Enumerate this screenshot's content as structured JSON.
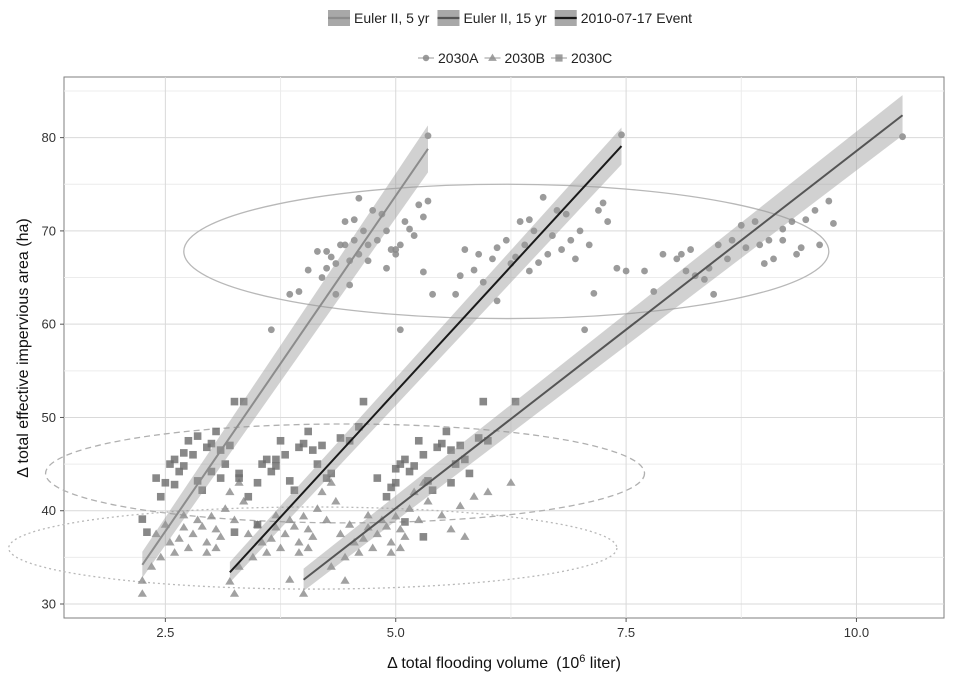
{
  "chart_data": {
    "type": "scatter",
    "xlabel_main": "Δ total flooding volume",
    "xlabel_unit_pre": "(10",
    "xlabel_unit_sup": "6",
    "xlabel_unit_post": " liter)",
    "ylabel": "Δ total effective impervious area  (ha)",
    "xlim": [
      1.4,
      10.95
    ],
    "ylim": [
      28.5,
      86.5
    ],
    "x_ticks": [
      2.5,
      5.0,
      7.5,
      10.0
    ],
    "x_tick_labels": [
      "2.5",
      "5.0",
      "7.5",
      "10.0"
    ],
    "y_ticks": [
      30,
      40,
      50,
      60,
      70,
      80
    ],
    "y_tick_labels": [
      "30",
      "40",
      "50",
      "60",
      "70",
      "80"
    ],
    "grid": true,
    "legend_position": "top",
    "line_legend": [
      {
        "name": "Euler II, 5 yr",
        "color": "#8c8c8c"
      },
      {
        "name": "Euler II, 15 yr",
        "color": "#555555"
      },
      {
        "name": "2010-07-17 Event",
        "color": "#1a1a1a"
      }
    ],
    "point_legend": [
      {
        "name": "2030A",
        "shape": "circle"
      },
      {
        "name": "2030B",
        "shape": "triangle"
      },
      {
        "name": "2030C",
        "shape": "square"
      }
    ],
    "fit_lines": [
      {
        "name": "Euler II, 5 yr",
        "color": "#8c8c8c",
        "x": [
          2.25,
          5.35
        ],
        "y": [
          34.2,
          78.8
        ],
        "band_halfwidth": 1.4
      },
      {
        "name": "2010-07-17 Event",
        "color": "#1a1a1a",
        "x": [
          3.2,
          7.45
        ],
        "y": [
          33.4,
          79.1
        ],
        "band_halfwidth": 1.1
      },
      {
        "name": "Euler II, 15 yr",
        "color": "#555555",
        "x": [
          4.0,
          10.5
        ],
        "y": [
          32.6,
          82.4
        ],
        "band_halfwidth": 1.2
      }
    ],
    "ellipses": [
      {
        "cx": 6.2,
        "cy": 67.8,
        "rx": 3.5,
        "ry": 7.2,
        "style": "solid",
        "color": "#b8b8b8"
      },
      {
        "cx": 4.45,
        "cy": 44.0,
        "rx": 3.25,
        "ry": 5.3,
        "style": "dashed",
        "color": "#b0b0b0"
      },
      {
        "cx": 4.1,
        "cy": 36.0,
        "rx": 3.3,
        "ry": 4.4,
        "style": "dotted",
        "color": "#b8b8b8"
      }
    ],
    "series": [
      {
        "name": "2030A",
        "shape": "circle",
        "color": "#8a8a8a",
        "points": [
          [
            5.35,
            80.2
          ],
          [
            7.45,
            80.3
          ],
          [
            10.5,
            80.1
          ],
          [
            3.65,
            59.4
          ],
          [
            5.05,
            59.4
          ],
          [
            7.05,
            59.4
          ],
          [
            3.85,
            63.2
          ],
          [
            3.95,
            63.5
          ],
          [
            4.35,
            63.2
          ],
          [
            4.5,
            64.2
          ],
          [
            4.2,
            65.0
          ],
          [
            4.05,
            65.8
          ],
          [
            4.15,
            67.8
          ],
          [
            4.25,
            67.8
          ],
          [
            4.4,
            68.5
          ],
          [
            4.45,
            71.0
          ],
          [
            4.55,
            71.2
          ],
          [
            4.6,
            73.5
          ],
          [
            4.75,
            72.2
          ],
          [
            4.85,
            71.8
          ],
          [
            4.9,
            70.0
          ],
          [
            5.0,
            68.0
          ],
          [
            4.8,
            69.0
          ],
          [
            4.7,
            68.5
          ],
          [
            4.6,
            67.5
          ],
          [
            4.5,
            66.8
          ],
          [
            4.35,
            66.5
          ],
          [
            4.25,
            66.0
          ],
          [
            4.9,
            66.0
          ],
          [
            5.0,
            67.5
          ],
          [
            5.15,
            70.2
          ],
          [
            5.25,
            72.8
          ],
          [
            5.3,
            71.5
          ],
          [
            5.35,
            73.2
          ],
          [
            5.4,
            63.2
          ],
          [
            5.3,
            65.6
          ],
          [
            4.65,
            70.0
          ],
          [
            4.7,
            66.8
          ],
          [
            4.95,
            68.0
          ],
          [
            4.55,
            69.0
          ],
          [
            4.45,
            68.5
          ],
          [
            4.3,
            67.2
          ],
          [
            5.05,
            68.5
          ],
          [
            5.1,
            71.0
          ],
          [
            5.2,
            69.5
          ],
          [
            5.65,
            63.2
          ],
          [
            5.7,
            65.2
          ],
          [
            5.85,
            65.8
          ],
          [
            5.95,
            64.5
          ],
          [
            5.75,
            68.0
          ],
          [
            5.9,
            67.5
          ],
          [
            6.1,
            68.2
          ],
          [
            6.2,
            69.0
          ],
          [
            6.35,
            71.0
          ],
          [
            6.45,
            71.2
          ],
          [
            6.6,
            73.6
          ],
          [
            6.75,
            72.2
          ],
          [
            6.85,
            71.8
          ],
          [
            7.0,
            70.0
          ],
          [
            7.1,
            68.5
          ],
          [
            6.9,
            69.0
          ],
          [
            6.8,
            68.0
          ],
          [
            6.65,
            67.5
          ],
          [
            6.55,
            66.6
          ],
          [
            6.45,
            65.7
          ],
          [
            6.25,
            66.5
          ],
          [
            6.1,
            62.5
          ],
          [
            6.05,
            67.0
          ],
          [
            6.5,
            70.0
          ],
          [
            6.7,
            69.5
          ],
          [
            7.2,
            72.2
          ],
          [
            7.25,
            73.0
          ],
          [
            7.3,
            71.0
          ],
          [
            7.4,
            66.0
          ],
          [
            7.15,
            63.3
          ],
          [
            6.95,
            67.0
          ],
          [
            6.4,
            68.5
          ],
          [
            6.3,
            67.2
          ],
          [
            7.5,
            65.7
          ],
          [
            7.7,
            65.7
          ],
          [
            7.8,
            63.5
          ],
          [
            7.9,
            67.5
          ],
          [
            8.05,
            67.0
          ],
          [
            8.15,
            65.7
          ],
          [
            8.25,
            65.2
          ],
          [
            8.35,
            64.8
          ],
          [
            8.45,
            63.2
          ],
          [
            8.5,
            68.5
          ],
          [
            8.65,
            69.0
          ],
          [
            8.8,
            68.2
          ],
          [
            8.95,
            68.5
          ],
          [
            9.05,
            69.0
          ],
          [
            9.2,
            70.2
          ],
          [
            9.3,
            71.0
          ],
          [
            9.45,
            71.2
          ],
          [
            9.55,
            72.2
          ],
          [
            9.7,
            73.2
          ],
          [
            9.75,
            70.8
          ],
          [
            9.4,
            68.2
          ],
          [
            9.35,
            67.5
          ],
          [
            9.2,
            69.0
          ],
          [
            9.0,
            66.5
          ],
          [
            8.9,
            71.0
          ],
          [
            8.75,
            70.6
          ],
          [
            8.6,
            67.0
          ],
          [
            8.4,
            66.0
          ],
          [
            8.2,
            68.0
          ],
          [
            8.1,
            67.5
          ],
          [
            9.6,
            68.5
          ],
          [
            9.1,
            67.0
          ]
        ]
      },
      {
        "name": "2030B",
        "shape": "triangle",
        "color": "#8a8a8a",
        "points": [
          [
            2.25,
            31.1
          ],
          [
            2.25,
            32.5
          ],
          [
            2.35,
            34.0
          ],
          [
            2.45,
            35.0
          ],
          [
            2.55,
            36.6
          ],
          [
            2.6,
            35.5
          ],
          [
            2.65,
            37.0
          ],
          [
            2.7,
            38.2
          ],
          [
            2.75,
            36.0
          ],
          [
            2.8,
            37.5
          ],
          [
            2.85,
            39.0
          ],
          [
            2.9,
            38.3
          ],
          [
            2.95,
            36.6
          ],
          [
            3.0,
            39.4
          ],
          [
            3.05,
            38.0
          ],
          [
            3.1,
            37.2
          ],
          [
            3.15,
            40.2
          ],
          [
            3.2,
            42.0
          ],
          [
            3.25,
            39.0
          ],
          [
            3.3,
            43.0
          ],
          [
            3.35,
            41.0
          ],
          [
            2.5,
            38.5
          ],
          [
            2.4,
            37.5
          ],
          [
            2.95,
            35.5
          ],
          [
            3.05,
            36.0
          ],
          [
            2.7,
            39.5
          ],
          [
            3.2,
            32.4
          ],
          [
            3.25,
            31.1
          ],
          [
            3.3,
            34.0
          ],
          [
            3.45,
            35.0
          ],
          [
            3.55,
            36.6
          ],
          [
            3.6,
            35.5
          ],
          [
            3.65,
            37.0
          ],
          [
            3.7,
            38.2
          ],
          [
            3.75,
            36.0
          ],
          [
            3.8,
            37.5
          ],
          [
            3.85,
            39.0
          ],
          [
            3.9,
            38.3
          ],
          [
            3.95,
            36.6
          ],
          [
            4.0,
            39.4
          ],
          [
            4.05,
            38.0
          ],
          [
            4.1,
            37.2
          ],
          [
            4.15,
            40.2
          ],
          [
            4.2,
            42.0
          ],
          [
            4.25,
            39.0
          ],
          [
            4.3,
            43.0
          ],
          [
            4.35,
            41.0
          ],
          [
            3.5,
            38.5
          ],
          [
            3.4,
            37.5
          ],
          [
            3.95,
            35.5
          ],
          [
            4.05,
            36.0
          ],
          [
            3.7,
            39.5
          ],
          [
            3.85,
            32.6
          ],
          [
            4.0,
            31.1
          ],
          [
            4.3,
            34.0
          ],
          [
            4.45,
            35.0
          ],
          [
            4.55,
            36.6
          ],
          [
            4.6,
            35.5
          ],
          [
            4.65,
            37.0
          ],
          [
            4.7,
            38.2
          ],
          [
            4.75,
            36.0
          ],
          [
            4.8,
            37.5
          ],
          [
            4.85,
            39.0
          ],
          [
            4.9,
            38.3
          ],
          [
            4.95,
            36.6
          ],
          [
            5.0,
            39.4
          ],
          [
            5.05,
            38.0
          ],
          [
            5.1,
            37.2
          ],
          [
            5.15,
            40.2
          ],
          [
            5.2,
            42.0
          ],
          [
            5.25,
            39.0
          ],
          [
            5.3,
            43.0
          ],
          [
            5.35,
            41.0
          ],
          [
            4.5,
            38.5
          ],
          [
            4.4,
            37.5
          ],
          [
            4.95,
            35.5
          ],
          [
            5.05,
            36.0
          ],
          [
            4.7,
            39.5
          ],
          [
            4.45,
            32.5
          ],
          [
            5.5,
            39.5
          ],
          [
            5.7,
            40.5
          ],
          [
            5.85,
            41.5
          ],
          [
            6.0,
            42.0
          ],
          [
            6.25,
            43.0
          ],
          [
            5.6,
            38.0
          ],
          [
            5.75,
            37.2
          ]
        ]
      },
      {
        "name": "2030C",
        "shape": "square",
        "color": "#6e6e6e",
        "points": [
          [
            2.25,
            39.1
          ],
          [
            2.3,
            37.7
          ],
          [
            2.4,
            43.5
          ],
          [
            2.5,
            43.0
          ],
          [
            2.55,
            45.0
          ],
          [
            2.6,
            45.5
          ],
          [
            2.65,
            44.2
          ],
          [
            2.7,
            44.8
          ],
          [
            2.75,
            47.5
          ],
          [
            2.8,
            46.0
          ],
          [
            2.85,
            43.2
          ],
          [
            2.9,
            42.2
          ],
          [
            2.95,
            46.8
          ],
          [
            3.0,
            47.2
          ],
          [
            3.05,
            48.5
          ],
          [
            3.1,
            46.5
          ],
          [
            3.15,
            45.0
          ],
          [
            3.2,
            47.0
          ],
          [
            3.25,
            51.7
          ],
          [
            3.35,
            51.7
          ],
          [
            2.45,
            41.5
          ],
          [
            2.6,
            42.8
          ],
          [
            2.7,
            46.2
          ],
          [
            3.0,
            44.2
          ],
          [
            3.1,
            43.5
          ],
          [
            2.85,
            48.0
          ],
          [
            3.3,
            44.0
          ],
          [
            3.3,
            43.5
          ],
          [
            3.4,
            41.5
          ],
          [
            3.5,
            43.0
          ],
          [
            3.55,
            45.0
          ],
          [
            3.6,
            45.5
          ],
          [
            3.65,
            44.2
          ],
          [
            3.7,
            44.8
          ],
          [
            3.75,
            47.5
          ],
          [
            3.8,
            46.0
          ],
          [
            3.85,
            43.2
          ],
          [
            3.9,
            42.2
          ],
          [
            3.95,
            46.8
          ],
          [
            4.0,
            47.2
          ],
          [
            4.05,
            48.5
          ],
          [
            4.1,
            46.5
          ],
          [
            4.15,
            45.0
          ],
          [
            4.2,
            47.0
          ],
          [
            4.3,
            44.0
          ],
          [
            4.4,
            47.8
          ],
          [
            4.5,
            47.5
          ],
          [
            4.6,
            49.0
          ],
          [
            4.65,
            51.7
          ],
          [
            3.5,
            38.5
          ],
          [
            3.25,
            37.7
          ],
          [
            4.25,
            43.5
          ],
          [
            3.7,
            45.5
          ],
          [
            4.8,
            43.5
          ],
          [
            4.9,
            41.5
          ],
          [
            5.0,
            43.0
          ],
          [
            5.05,
            45.0
          ],
          [
            5.1,
            45.5
          ],
          [
            5.15,
            44.2
          ],
          [
            5.2,
            44.8
          ],
          [
            5.25,
            47.5
          ],
          [
            5.3,
            46.0
          ],
          [
            5.35,
            43.2
          ],
          [
            5.4,
            42.2
          ],
          [
            5.45,
            46.8
          ],
          [
            5.5,
            47.2
          ],
          [
            5.55,
            48.5
          ],
          [
            5.6,
            46.5
          ],
          [
            5.65,
            45.0
          ],
          [
            5.7,
            47.0
          ],
          [
            5.8,
            44.0
          ],
          [
            5.9,
            47.8
          ],
          [
            6.0,
            47.5
          ],
          [
            5.95,
            51.7
          ],
          [
            6.3,
            51.7
          ],
          [
            5.0,
            44.5
          ],
          [
            4.95,
            42.5
          ],
          [
            5.1,
            38.8
          ],
          [
            5.3,
            37.2
          ],
          [
            5.6,
            43.0
          ],
          [
            5.75,
            45.5
          ]
        ]
      }
    ]
  }
}
